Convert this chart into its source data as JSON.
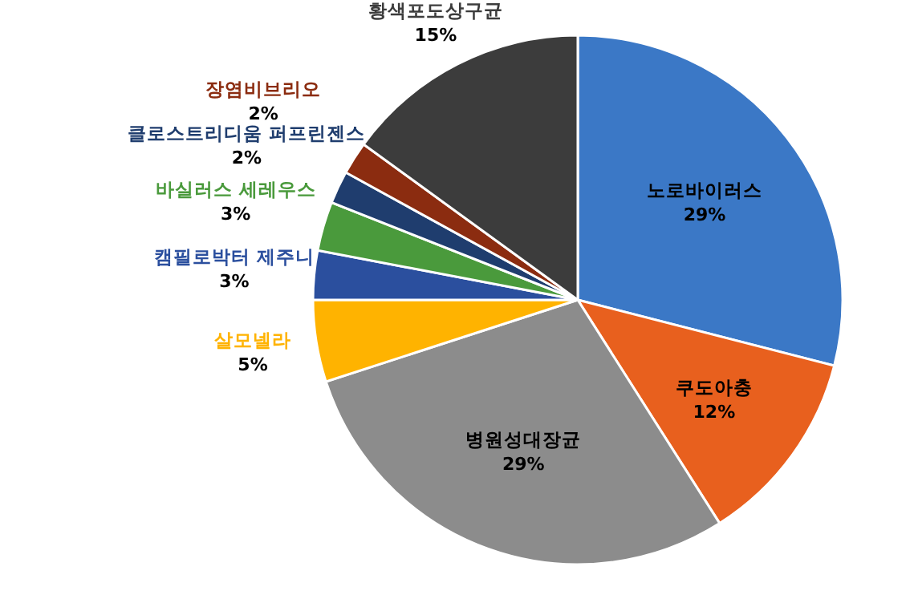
{
  "chart_data": {
    "type": "pie",
    "categories": [
      "노로바이러스",
      "쿠도아충",
      "병원성대장균",
      "살모넬라",
      "캠필로박터 제주니",
      "바실러스 세레우스",
      "클로스트리디움 퍼프린젠스",
      "장염비브리오",
      "황색포도상구균"
    ],
    "values": [
      29,
      12,
      29,
      5,
      3,
      3,
      2,
      2,
      15
    ],
    "value_labels": [
      "29%",
      "12%",
      "29%",
      "5%",
      "3%",
      "3%",
      "2%",
      "2%",
      "15%"
    ],
    "colors": [
      "#3b78c6",
      "#e8601e",
      "#8c8c8c",
      "#ffb300",
      "#2b4f9e",
      "#4a9a3c",
      "#1f3d6e",
      "#8b2c10",
      "#3c3c3c"
    ]
  }
}
